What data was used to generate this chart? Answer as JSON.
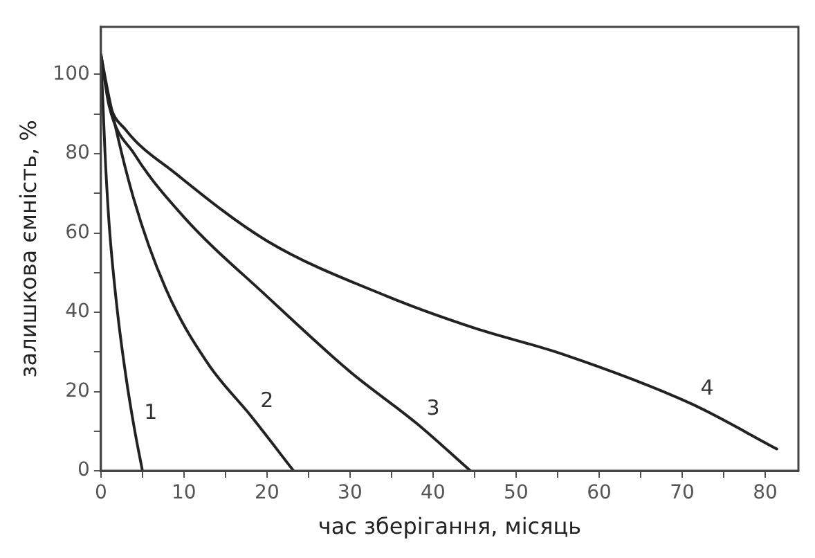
{
  "chart_data": {
    "type": "line",
    "xlabel": "час зберігання, місяць",
    "ylabel": "залишкова ємність, %",
    "xlim": [
      0,
      84
    ],
    "ylim": [
      0,
      112
    ],
    "xticks": [
      0,
      {
        "value": 5,
        "label": null
      },
      10,
      {
        "value": 15,
        "label": null
      },
      20,
      {
        "value": 25,
        "label": null
      },
      30,
      {
        "value": 35,
        "label": null
      },
      40,
      {
        "value": 45,
        "label": null
      },
      50,
      {
        "value": 55,
        "label": null
      },
      60,
      {
        "value": 65,
        "label": null
      },
      70,
      {
        "value": 75,
        "label": null
      },
      80
    ],
    "yticks": [
      0,
      {
        "value": 10,
        "label": null
      },
      20,
      {
        "value": 30,
        "label": null
      },
      40,
      {
        "value": 50,
        "label": null
      },
      60,
      {
        "value": 70,
        "label": null
      },
      80,
      {
        "value": 90,
        "label": null
      },
      100
    ],
    "grid": false,
    "legend": false,
    "marker": "none",
    "line_style": "solid",
    "series": [
      {
        "name": "1",
        "color": "#222222",
        "x": [
          0,
          0.5,
          1,
          2,
          3,
          4,
          5
        ],
        "values": [
          105,
          80,
          62,
          40,
          24,
          11,
          0
        ]
      },
      {
        "name": "2",
        "color": "#222222",
        "x": [
          0,
          1,
          3.9,
          7.8,
          12.9,
          18,
          23.2
        ],
        "values": [
          105,
          94,
          69,
          46,
          27,
          14,
          0
        ]
      },
      {
        "name": "3",
        "color": "#222222",
        "x": [
          0,
          1,
          4,
          10,
          20,
          30,
          38,
          44.5
        ],
        "values": [
          105,
          92,
          80,
          64,
          44,
          25,
          12,
          0
        ]
      },
      {
        "name": "4",
        "color": "#222222",
        "x": [
          0,
          1,
          3,
          9,
          20,
          34.5,
          45,
          55.5,
          71,
          81.4
        ],
        "values": [
          105,
          93,
          86,
          75,
          58,
          44,
          36,
          29.5,
          17,
          5.5
        ]
      }
    ]
  }
}
